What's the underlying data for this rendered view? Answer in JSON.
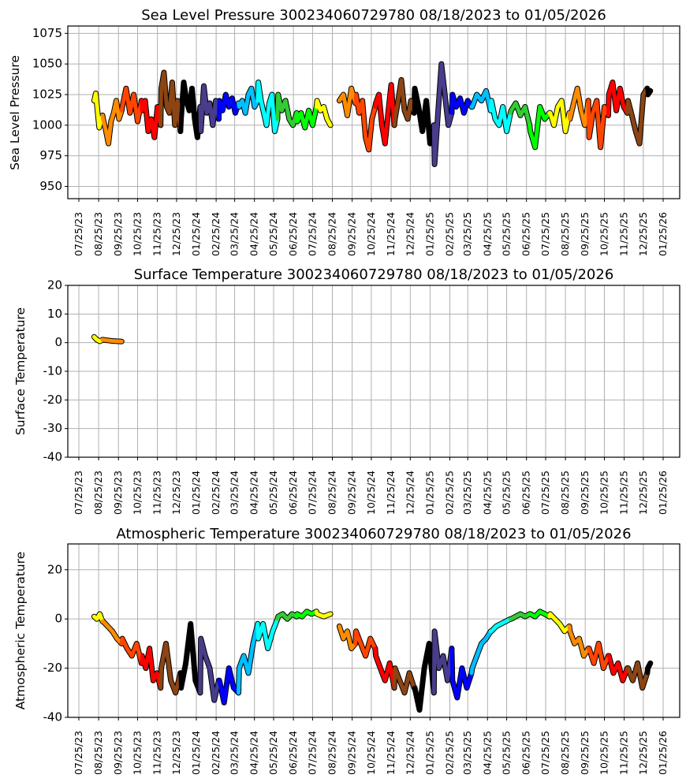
{
  "chart_data": [
    {
      "type": "line",
      "title": "Sea Level Pressure 300234060729780  08/18/2023 to 01/05/2026",
      "xlabel": "",
      "ylabel": "Sea Level Pressure",
      "ylim": [
        940,
        1081
      ],
      "yticks": [
        950,
        975,
        1000,
        1025,
        1050,
        1075
      ],
      "grid": true,
      "segments": [
        {
          "month": "2023-08",
          "color": "#ffff00",
          "start": "2023-08-18",
          "end": "2023-08-31",
          "values": [
            1020,
            1026,
            1012,
            998,
            1003,
            1008
          ]
        },
        {
          "month": "2023-09",
          "color": "#ff8c00",
          "start": "2023-09-01",
          "end": "2023-09-30",
          "values": [
            1005,
            996,
            985,
            1003,
            1010,
            1020,
            1005,
            1012
          ]
        },
        {
          "month": "2023-10",
          "color": "#ff4500",
          "start": "2023-10-01",
          "end": "2023-10-31",
          "values": [
            1015,
            1030,
            1010,
            1025,
            1003,
            1020
          ]
        },
        {
          "month": "2023-11",
          "color": "#ff0000",
          "start": "2023-11-01",
          "end": "2023-11-30",
          "values": [
            1012,
            1020,
            995,
            1005,
            990,
            1015,
            1000
          ]
        },
        {
          "month": "2023-12",
          "color": "#8b4513",
          "start": "2023-12-01",
          "end": "2023-12-31",
          "values": [
            1030,
            1043,
            1015,
            1010,
            1035,
            1000,
            1020,
            995
          ]
        },
        {
          "month": "2024-01",
          "color": "#000000",
          "start": "2024-01-01",
          "end": "2024-01-31",
          "values": [
            1005,
            1035,
            1020,
            1012,
            1030,
            1005,
            990,
            1015
          ]
        },
        {
          "month": "2024-02",
          "color": "#483d8b",
          "start": "2024-02-01",
          "end": "2024-02-29",
          "values": [
            995,
            1032,
            1010,
            1018,
            1000,
            1020,
            1005
          ]
        },
        {
          "month": "2024-03",
          "color": "#0000ff",
          "start": "2024-03-01",
          "end": "2024-03-31",
          "values": [
            1020,
            1012,
            1025,
            1015,
            1022,
            1010,
            1018
          ]
        },
        {
          "month": "2024-04",
          "color": "#00bfff",
          "start": "2024-04-01",
          "end": "2024-04-30",
          "values": [
            1015,
            1020,
            1010,
            1025,
            1030,
            1015,
            1020
          ]
        },
        {
          "month": "2024-05",
          "color": "#00ffff",
          "start": "2024-05-01",
          "end": "2024-05-31",
          "values": [
            1035,
            1020,
            1010,
            1000,
            1018,
            1025,
            995,
            1005
          ]
        },
        {
          "month": "2024-06",
          "color": "#32cd32",
          "start": "2024-06-01",
          "end": "2024-06-30",
          "values": [
            1025,
            1012,
            1020,
            1005,
            1000,
            1010
          ]
        },
        {
          "month": "2024-07",
          "color": "#00ff00",
          "start": "2024-07-01",
          "end": "2024-07-31",
          "values": [
            1003,
            1010,
            998,
            1012,
            1000,
            1015
          ]
        },
        {
          "month": "2024-08",
          "color": "#ffff00",
          "start": "2024-08-01",
          "end": "2024-08-22",
          "values": [
            1020,
            1012,
            1015,
            1005,
            1000
          ]
        },
        {
          "month": "2024-09",
          "color": "#ff8c00",
          "start": "2024-09-05",
          "end": "2024-09-30",
          "values": [
            1020,
            1025,
            1008,
            1030,
            1018
          ]
        },
        {
          "month": "2024-10",
          "color": "#ff4500",
          "start": "2024-10-01",
          "end": "2024-10-31",
          "values": [
            1025,
            1010,
            1020,
            990,
            980,
            1005,
            1015
          ]
        },
        {
          "month": "2024-11",
          "color": "#ff0000",
          "start": "2024-11-01",
          "end": "2024-11-30",
          "values": [
            1018,
            1025,
            1000,
            985,
            1010,
            1033,
            1000
          ]
        },
        {
          "month": "2024-12",
          "color": "#8b4513",
          "start": "2024-12-01",
          "end": "2024-12-31",
          "values": [
            1005,
            1020,
            1037,
            1012,
            1005,
            1020,
            1010
          ]
        },
        {
          "month": "2025-01",
          "color": "#000000",
          "start": "2025-01-01",
          "end": "2025-01-31",
          "values": [
            1030,
            1015,
            995,
            1020,
            985,
            1000
          ]
        },
        {
          "month": "2025-02",
          "color": "#483d8b",
          "start": "2025-02-01",
          "end": "2025-02-28",
          "values": [
            968,
            1010,
            1050,
            1025,
            1000,
            1010
          ]
        },
        {
          "month": "2025-03",
          "color": "#0000ff",
          "start": "2025-03-01",
          "end": "2025-03-31",
          "values": [
            1025,
            1015,
            1022,
            1010,
            1020,
            1015
          ]
        },
        {
          "month": "2025-04",
          "color": "#00bfff",
          "start": "2025-04-01",
          "end": "2025-04-30",
          "values": [
            1015,
            1025,
            1020,
            1028,
            1012
          ]
        },
        {
          "month": "2025-05",
          "color": "#00ffff",
          "start": "2025-05-01",
          "end": "2025-05-31",
          "values": [
            1020,
            1005,
            1000,
            1015,
            995,
            1010
          ]
        },
        {
          "month": "2025-06",
          "color": "#32cd32",
          "start": "2025-06-01",
          "end": "2025-06-30",
          "values": [
            1012,
            1018,
            1008,
            1015,
            1000
          ]
        },
        {
          "month": "2025-07",
          "color": "#00ff00",
          "start": "2025-07-01",
          "end": "2025-07-31",
          "values": [
            995,
            982,
            1015,
            1005,
            1010
          ]
        },
        {
          "month": "2025-08",
          "color": "#ffff00",
          "start": "2025-08-01",
          "end": "2025-08-31",
          "values": [
            1010,
            1000,
            1015,
            1020,
            995,
            1010
          ]
        },
        {
          "month": "2025-09",
          "color": "#ff8c00",
          "start": "2025-09-01",
          "end": "2025-09-30",
          "values": [
            1005,
            1018,
            1030,
            1012,
            1000,
            1020
          ]
        },
        {
          "month": "2025-10",
          "color": "#ff4500",
          "start": "2025-10-01",
          "end": "2025-10-31",
          "values": [
            990,
            1010,
            1020,
            982,
            1015,
            1008
          ]
        },
        {
          "month": "2025-11",
          "color": "#ff0000",
          "start": "2025-11-01",
          "end": "2025-11-30",
          "values": [
            1025,
            1035,
            1012,
            1030,
            1015,
            1010
          ]
        },
        {
          "month": "2025-12",
          "color": "#8b4513",
          "start": "2025-12-01",
          "end": "2025-12-31",
          "values": [
            1020,
            1008,
            995,
            985,
            1025,
            1030
          ]
        },
        {
          "month": "2026-01",
          "color": "#000000",
          "start": "2026-01-01",
          "end": "2026-01-05",
          "values": [
            1025,
            1028
          ]
        }
      ]
    },
    {
      "type": "line",
      "title": "Surface Temperature 300234060729780  08/18/2023 to 01/05/2026",
      "xlabel": "",
      "ylabel": "Surface Temperature",
      "ylim": [
        -40,
        20
      ],
      "yticks": [
        -40,
        -30,
        -20,
        -10,
        0,
        10,
        20
      ],
      "grid": true,
      "segments": [
        {
          "month": "2023-08",
          "color": "#ffff00",
          "start": "2023-08-18",
          "end": "2023-08-31",
          "values": [
            2,
            1,
            0.5,
            1
          ]
        },
        {
          "month": "2023-09",
          "color": "#ff8c00",
          "start": "2023-09-01",
          "end": "2023-09-30",
          "values": [
            1,
            0.8,
            0.6,
            0.5,
            0.4
          ]
        }
      ]
    },
    {
      "type": "line",
      "title": "Atmospheric Temperature 300234060729780  08/18/2023 to 01/05/2026",
      "xlabel": "",
      "ylabel": "Atmospheric Temperature",
      "ylim": [
        -40,
        30.5
      ],
      "yticks": [
        -40,
        -20,
        0,
        20
      ],
      "grid": true,
      "segments": [
        {
          "month": "2023-08",
          "color": "#ffff00",
          "start": "2023-08-18",
          "end": "2023-08-31",
          "values": [
            1,
            0,
            2,
            -1
          ]
        },
        {
          "month": "2023-09",
          "color": "#ff8c00",
          "start": "2023-09-01",
          "end": "2023-09-30",
          "values": [
            -1,
            -3,
            -5,
            -8,
            -10
          ]
        },
        {
          "month": "2023-10",
          "color": "#ff4500",
          "start": "2023-10-01",
          "end": "2023-10-31",
          "values": [
            -8,
            -12,
            -15,
            -10,
            -18
          ]
        },
        {
          "month": "2023-11",
          "color": "#ff0000",
          "start": "2023-11-01",
          "end": "2023-11-30",
          "values": [
            -15,
            -20,
            -12,
            -25,
            -22,
            -28
          ]
        },
        {
          "month": "2023-12",
          "color": "#8b4513",
          "start": "2023-12-01",
          "end": "2023-12-31",
          "values": [
            -20,
            -10,
            -25,
            -30,
            -22
          ]
        },
        {
          "month": "2024-01",
          "color": "#000000",
          "start": "2024-01-01",
          "end": "2024-01-31",
          "values": [
            -28,
            -18,
            -2,
            -25,
            -30
          ]
        },
        {
          "month": "2024-02",
          "color": "#483d8b",
          "start": "2024-02-01",
          "end": "2024-02-29",
          "values": [
            -8,
            -15,
            -20,
            -33,
            -25
          ]
        },
        {
          "month": "2024-03",
          "color": "#0000ff",
          "start": "2024-03-01",
          "end": "2024-03-31",
          "values": [
            -25,
            -34,
            -20,
            -28,
            -30
          ]
        },
        {
          "month": "2024-04",
          "color": "#00bfff",
          "start": "2024-04-01",
          "end": "2024-04-30",
          "values": [
            -20,
            -15,
            -22,
            -10,
            -2
          ]
        },
        {
          "month": "2024-05",
          "color": "#00ffff",
          "start": "2024-05-01",
          "end": "2024-05-31",
          "values": [
            -8,
            -2,
            -12,
            -5,
            0
          ]
        },
        {
          "month": "2024-06",
          "color": "#32cd32",
          "start": "2024-06-01",
          "end": "2024-06-30",
          "values": [
            1,
            2,
            0,
            2,
            1
          ]
        },
        {
          "month": "2024-07",
          "color": "#00ff00",
          "start": "2024-07-01",
          "end": "2024-07-31",
          "values": [
            2,
            1,
            3,
            2,
            3
          ]
        },
        {
          "month": "2024-08",
          "color": "#ffff00",
          "start": "2024-08-01",
          "end": "2024-08-22",
          "values": [
            2,
            1,
            2
          ]
        },
        {
          "month": "2024-09",
          "color": "#ff8c00",
          "start": "2024-09-05",
          "end": "2024-09-30",
          "values": [
            -3,
            -8,
            -5,
            -12,
            -10
          ]
        },
        {
          "month": "2024-10",
          "color": "#ff4500",
          "start": "2024-10-01",
          "end": "2024-10-31",
          "values": [
            -5,
            -10,
            -15,
            -8,
            -12
          ]
        },
        {
          "month": "2024-11",
          "color": "#ff0000",
          "start": "2024-11-01",
          "end": "2024-11-30",
          "values": [
            -15,
            -20,
            -25,
            -18,
            -28
          ]
        },
        {
          "month": "2024-12",
          "color": "#8b4513",
          "start": "2024-12-01",
          "end": "2024-12-31",
          "values": [
            -20,
            -25,
            -30,
            -22,
            -28
          ]
        },
        {
          "month": "2025-01",
          "color": "#000000",
          "start": "2025-01-01",
          "end": "2025-01-31",
          "values": [
            -28,
            -37,
            -20,
            -10,
            -30
          ]
        },
        {
          "month": "2025-02",
          "color": "#483d8b",
          "start": "2025-02-01",
          "end": "2025-02-28",
          "values": [
            -5,
            -20,
            -15,
            -25,
            -12
          ]
        },
        {
          "month": "2025-03",
          "color": "#0000ff",
          "start": "2025-03-01",
          "end": "2025-03-31",
          "values": [
            -25,
            -32,
            -20,
            -28,
            -22
          ]
        },
        {
          "month": "2025-04",
          "color": "#00bfff",
          "start": "2025-04-01",
          "end": "2025-04-30",
          "values": [
            -20,
            -15,
            -10,
            -8,
            -5
          ]
        },
        {
          "month": "2025-05",
          "color": "#00ffff",
          "start": "2025-05-01",
          "end": "2025-05-31",
          "values": [
            -5,
            -3,
            -2,
            -1,
            0
          ]
        },
        {
          "month": "2025-06",
          "color": "#32cd32",
          "start": "2025-06-01",
          "end": "2025-06-30",
          "values": [
            0,
            1,
            2,
            1,
            2
          ]
        },
        {
          "month": "2025-07",
          "color": "#00ff00",
          "start": "2025-07-01",
          "end": "2025-07-31",
          "values": [
            2,
            1,
            3,
            2,
            1
          ]
        },
        {
          "month": "2025-08",
          "color": "#ffff00",
          "start": "2025-08-01",
          "end": "2025-08-31",
          "values": [
            2,
            0,
            -2,
            -5,
            -3
          ]
        },
        {
          "month": "2025-09",
          "color": "#ff8c00",
          "start": "2025-09-01",
          "end": "2025-09-30",
          "values": [
            -5,
            -10,
            -8,
            -15,
            -12
          ]
        },
        {
          "month": "2025-10",
          "color": "#ff4500",
          "start": "2025-10-01",
          "end": "2025-10-31",
          "values": [
            -12,
            -18,
            -10,
            -20,
            -15
          ]
        },
        {
          "month": "2025-11",
          "color": "#ff0000",
          "start": "2025-11-01",
          "end": "2025-11-30",
          "values": [
            -15,
            -22,
            -18,
            -25,
            -20
          ]
        },
        {
          "month": "2025-12",
          "color": "#8b4513",
          "start": "2025-12-01",
          "end": "2025-12-31",
          "values": [
            -20,
            -25,
            -18,
            -28,
            -22
          ]
        },
        {
          "month": "2026-01",
          "color": "#000000",
          "start": "2026-01-01",
          "end": "2026-01-05",
          "values": [
            -20,
            -18
          ]
        }
      ]
    }
  ],
  "xticks": [
    "07/25/23",
    "08/25/23",
    "09/25/23",
    "10/25/23",
    "11/25/23",
    "12/25/23",
    "01/25/24",
    "02/25/24",
    "03/25/24",
    "04/25/24",
    "05/25/24",
    "06/25/24",
    "07/25/24",
    "08/25/24",
    "09/25/24",
    "10/25/24",
    "11/25/24",
    "12/25/24",
    "01/25/25",
    "02/25/25",
    "03/25/25",
    "04/25/25",
    "05/25/25",
    "06/25/25",
    "07/25/25",
    "08/25/25",
    "09/25/25",
    "10/25/25",
    "11/25/25",
    "12/25/25",
    "01/25/26"
  ],
  "xrange": [
    "2023-07-10",
    "2026-02-10"
  ]
}
